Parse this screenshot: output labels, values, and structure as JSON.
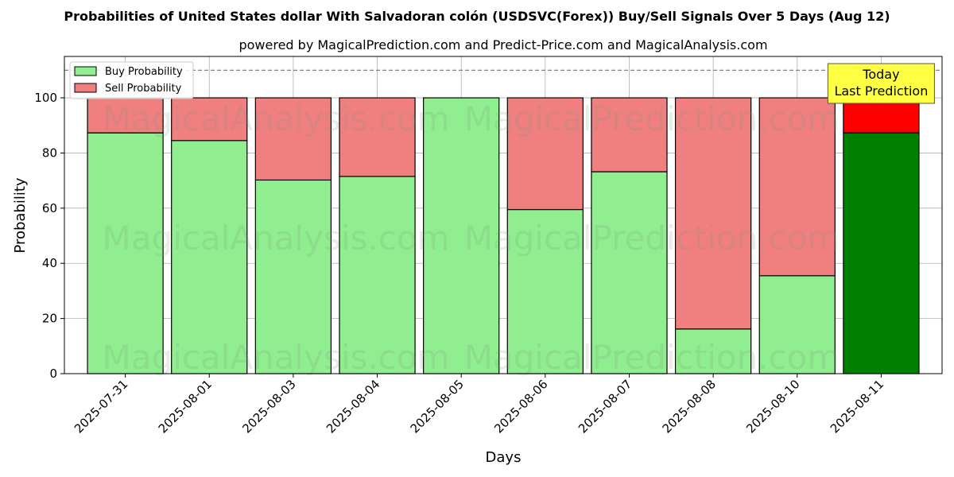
{
  "chart_data": {
    "type": "bar",
    "stacked": true,
    "title": "Probabilities of United States dollar With Salvadoran colón (USDSVC(Forex)) Buy/Sell Signals Over 5 Days (Aug 12)",
    "subtitle": "powered by MagicalPrediction.com and Predict-Price.com and MagicalAnalysis.com",
    "xlabel": "Days",
    "ylabel": "Probability",
    "ylim": [
      0,
      115
    ],
    "yticks": [
      0,
      20,
      40,
      60,
      80,
      100
    ],
    "grid": true,
    "legend_position": "top-left",
    "reference_line": 110,
    "categories": [
      "2025-07-31",
      "2025-08-01",
      "2025-08-03",
      "2025-08-04",
      "2025-08-05",
      "2025-08-06",
      "2025-08-07",
      "2025-08-08",
      "2025-08-10",
      "2025-08-11"
    ],
    "series": [
      {
        "name": "Buy Probability",
        "color": "#90ee90",
        "highlight_color": "#008000",
        "values": [
          87.3,
          84.5,
          70.2,
          71.5,
          100.0,
          59.5,
          73.2,
          16.2,
          35.5,
          87.3
        ]
      },
      {
        "name": "Sell Probability",
        "color": "#f08080",
        "highlight_color": "#ff0000",
        "values": [
          12.7,
          15.5,
          29.8,
          28.5,
          0.0,
          40.5,
          26.8,
          83.8,
          64.5,
          12.7
        ]
      }
    ],
    "highlight_index": 9,
    "annotation": {
      "lines": [
        "Today",
        "Last Prediction"
      ],
      "bg_color": "#ffff44"
    },
    "watermarks": [
      "MagicalAnalysis.com",
      "MagicalPrediction.com",
      "MagicalAnalysis.com",
      "MagicalPrediction.com",
      "MagicalAnalysis.com",
      "MagicalPrediction.com"
    ]
  }
}
